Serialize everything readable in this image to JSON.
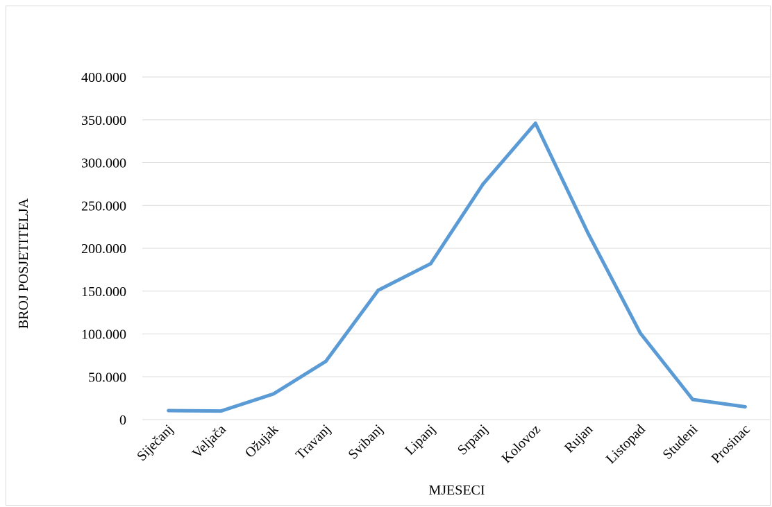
{
  "chart_data": {
    "type": "line",
    "title": "",
    "xlabel": "MJESECI",
    "ylabel": "BROJ POSJETITELJA",
    "categories": [
      "Siječanj",
      "Veljača",
      "Ožujak",
      "Travanj",
      "Svibanj",
      "Lipanj",
      "Srpanj",
      "Kolovoz",
      "Rujan",
      "Listopad",
      "Studeni",
      "Prosinac"
    ],
    "series": [
      {
        "values": [
          10500,
          10000,
          30000,
          68000,
          151000,
          182000,
          275000,
          346000,
          218000,
          101000,
          23500,
          15000
        ]
      }
    ],
    "ylim": [
      0,
      400000
    ],
    "yticks": [
      0,
      50000,
      100000,
      150000,
      200000,
      250000,
      300000,
      350000,
      400000
    ],
    "ytick_labels": [
      "0",
      "50.000",
      "100.000",
      "150.000",
      "200.000",
      "250.000",
      "300.000",
      "350.000",
      "400.000"
    ],
    "grid": true,
    "legend": "none",
    "colors": {
      "line": "#5b9bd5",
      "grid": "#d9d9d9"
    }
  }
}
